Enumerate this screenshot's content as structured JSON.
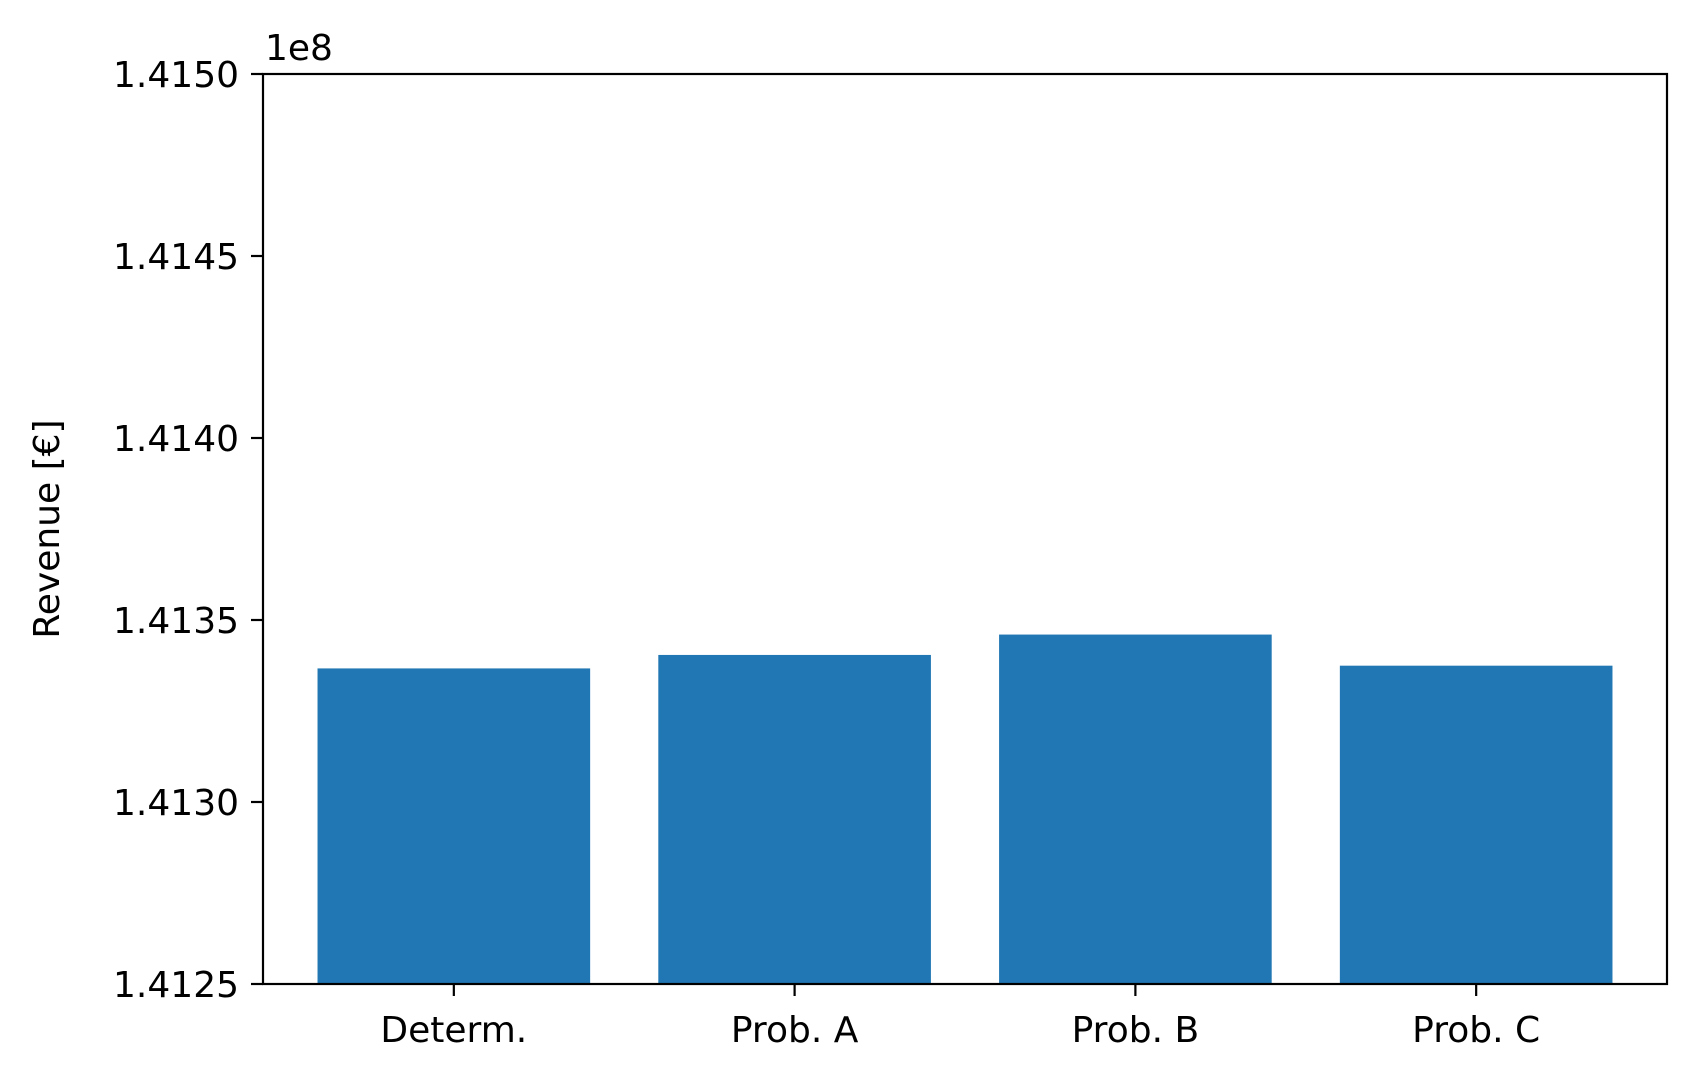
{
  "chart_data": {
    "type": "bar",
    "title": "",
    "xlabel": "",
    "ylabel": "Revenue [€]",
    "y_offset_label": "1e8",
    "y_scale_factor": 100000000,
    "categories": [
      "Determ.",
      "Prob. A",
      "Prob. B",
      "Prob. C"
    ],
    "values": [
      141336700,
      141340400,
      141346000,
      141337450
    ],
    "ylim": [
      141250000,
      141500000
    ],
    "y_ticks": [
      1.4125,
      1.413,
      1.4135,
      1.414,
      1.4145,
      1.415
    ],
    "y_tick_labels": [
      "1.4125",
      "1.4130",
      "1.4135",
      "1.4140",
      "1.4145",
      "1.4150"
    ],
    "grid": false,
    "legend": "none",
    "bar_color": "#2177b3"
  }
}
